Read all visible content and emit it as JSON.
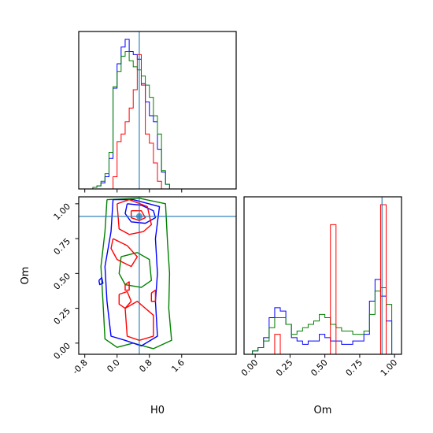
{
  "chart_data": {
    "type": "corner",
    "params": [
      "H0",
      "Om"
    ],
    "truth": {
      "H0": 0.55,
      "Om": 0.91
    },
    "colors": {
      "series": [
        "#0000ff",
        "#008000",
        "#ff0000"
      ],
      "truth": "#1f77b4"
    },
    "axes": {
      "H0": {
        "label": "H0",
        "range": [
          -0.95,
          2.95
        ],
        "ticks": [
          "-0.8",
          "0.0",
          "0.8",
          "1.6"
        ],
        "tick_values": [
          -0.8,
          0.0,
          0.8,
          1.6
        ]
      },
      "Om": {
        "label": "Om",
        "range": [
          -0.08,
          1.05
        ],
        "ticks": [
          "0.00",
          "0.25",
          "0.50",
          "0.75",
          "1.00"
        ],
        "tick_values": [
          0.0,
          0.25,
          0.5,
          0.75,
          1.0
        ]
      }
    },
    "hist_H0": {
      "bins": [
        -0.9,
        -0.8,
        -0.7,
        -0.6,
        -0.5,
        -0.4,
        -0.3,
        -0.2,
        -0.1,
        0.0,
        0.1,
        0.2,
        0.3,
        0.4,
        0.5,
        0.6,
        0.7,
        0.8,
        0.9,
        1.0,
        1.1,
        1.2,
        1.3,
        1.4,
        1.5
      ],
      "series": [
        {
          "values": [
            0,
            0,
            0,
            1,
            2,
            4,
            8,
            20,
            66,
            82,
            93,
            98,
            90,
            88,
            85,
            69,
            57,
            48,
            44,
            26,
            11,
            3,
            0,
            0
          ]
        },
        {
          "values": [
            0,
            0,
            0,
            1,
            2,
            5,
            10,
            24,
            67,
            77,
            87,
            90,
            84,
            80,
            78,
            74,
            68,
            60,
            48,
            36,
            12,
            3,
            0,
            0
          ]
        },
        {
          "values": [
            0,
            0,
            0,
            0,
            0,
            0,
            0,
            0,
            8,
            31,
            36,
            44,
            53,
            65,
            88,
            68,
            36,
            30,
            17,
            5,
            0,
            0,
            0,
            0
          ]
        }
      ]
    },
    "hist_Om": {
      "bins": [
        -0.06,
        -0.02,
        0.02,
        0.06,
        0.1,
        0.14,
        0.18,
        0.22,
        0.26,
        0.3,
        0.34,
        0.38,
        0.42,
        0.46,
        0.5,
        0.54,
        0.58,
        0.62,
        0.66,
        0.7,
        0.74,
        0.78,
        0.82,
        0.86,
        0.9,
        0.94,
        0.98,
        1.02,
        1.06
      ],
      "series": [
        {
          "values": [
            0,
            2,
            4,
            10,
            22,
            28,
            26,
            18,
            10,
            8,
            6,
            8,
            8,
            12,
            10,
            8,
            8,
            6,
            6,
            8,
            8,
            12,
            32,
            45,
            35,
            20,
            0,
            0
          ]
        },
        {
          "values": [
            0,
            2,
            4,
            8,
            16,
            22,
            22,
            18,
            12,
            14,
            16,
            18,
            20,
            24,
            22,
            18,
            16,
            14,
            14,
            12,
            12,
            14,
            24,
            38,
            40,
            30,
            0,
            0
          ]
        },
        {
          "values": [
            0,
            0,
            0,
            0,
            0,
            12,
            0,
            0,
            0,
            0,
            0,
            0,
            0,
            0,
            0,
            78,
            0,
            0,
            0,
            0,
            0,
            0,
            0,
            0,
            90,
            0,
            0,
            0
          ]
        }
      ]
    },
    "contours": [
      {
        "series": 1,
        "level": "outer",
        "points": [
          [
            -0.25,
            1.03
          ],
          [
            0.55,
            1.04
          ],
          [
            1.2,
            1.0
          ],
          [
            1.25,
            0.72
          ],
          [
            1.3,
            0.5
          ],
          [
            1.28,
            0.25
          ],
          [
            1.35,
            0.02
          ],
          [
            0.9,
            -0.04
          ],
          [
            0.4,
            0.0
          ],
          [
            0.0,
            -0.03
          ],
          [
            -0.3,
            0.03
          ],
          [
            -0.35,
            0.3
          ],
          [
            -0.4,
            0.55
          ],
          [
            -0.3,
            0.8
          ],
          [
            -0.25,
            1.03
          ]
        ]
      },
      {
        "series": 0,
        "level": "outer",
        "points": [
          [
            -0.1,
            1.03
          ],
          [
            0.4,
            1.03
          ],
          [
            1.05,
            0.98
          ],
          [
            0.95,
            0.75
          ],
          [
            1.0,
            0.5
          ],
          [
            0.95,
            0.3
          ],
          [
            1.0,
            0.05
          ],
          [
            0.6,
            -0.02
          ],
          [
            0.2,
            0.02
          ],
          [
            -0.15,
            0.05
          ],
          [
            -0.25,
            0.3
          ],
          [
            -0.3,
            0.55
          ],
          [
            -0.15,
            0.8
          ],
          [
            -0.1,
            1.03
          ]
        ]
      },
      {
        "series": 0,
        "level": "inner",
        "points": [
          [
            0.25,
            1.0
          ],
          [
            0.6,
            0.99
          ],
          [
            0.9,
            0.95
          ],
          [
            0.95,
            0.9
          ],
          [
            0.7,
            0.86
          ],
          [
            0.35,
            0.87
          ],
          [
            0.2,
            0.93
          ],
          [
            0.25,
            1.0
          ]
        ]
      },
      {
        "series": 1,
        "level": "inner",
        "points": [
          [
            0.1,
            0.62
          ],
          [
            0.5,
            0.65
          ],
          [
            0.8,
            0.6
          ],
          [
            0.85,
            0.45
          ],
          [
            0.6,
            0.4
          ],
          [
            0.2,
            0.42
          ],
          [
            0.05,
            0.5
          ],
          [
            0.1,
            0.62
          ]
        ]
      },
      {
        "series": 2,
        "level": "outer",
        "points": [
          [
            0.0,
            1.0
          ],
          [
            0.3,
            1.03
          ],
          [
            0.75,
            0.98
          ],
          [
            0.85,
            0.85
          ],
          [
            0.65,
            0.8
          ],
          [
            0.3,
            0.78
          ],
          [
            0.05,
            0.82
          ],
          [
            0.0,
            1.0
          ]
        ]
      },
      {
        "series": 2,
        "level": "outer",
        "points": [
          [
            -0.1,
            0.75
          ],
          [
            0.25,
            0.7
          ],
          [
            0.5,
            0.62
          ],
          [
            0.35,
            0.55
          ],
          [
            0.0,
            0.6
          ],
          [
            -0.15,
            0.68
          ],
          [
            -0.1,
            0.75
          ]
        ]
      },
      {
        "series": 2,
        "level": "outer",
        "points": [
          [
            0.2,
            0.25
          ],
          [
            0.5,
            0.3
          ],
          [
            0.9,
            0.2
          ],
          [
            0.9,
            0.05
          ],
          [
            0.55,
            0.02
          ],
          [
            0.25,
            0.05
          ],
          [
            0.2,
            0.25
          ]
        ]
      },
      {
        "series": 2,
        "level": "outer",
        "points": [
          [
            0.05,
            0.35
          ],
          [
            0.25,
            0.37
          ],
          [
            0.35,
            0.3
          ],
          [
            0.2,
            0.25
          ],
          [
            0.05,
            0.28
          ],
          [
            0.05,
            0.35
          ]
        ]
      },
      {
        "series": 2,
        "level": "inner",
        "points": [
          [
            0.35,
            0.95
          ],
          [
            0.6,
            0.95
          ],
          [
            0.7,
            0.9
          ],
          [
            0.55,
            0.88
          ],
          [
            0.35,
            0.9
          ],
          [
            0.35,
            0.95
          ]
        ]
      },
      {
        "series": 2,
        "level": "inner",
        "points": [
          [
            0.2,
            0.42
          ],
          [
            0.3,
            0.44
          ],
          [
            0.3,
            0.38
          ],
          [
            0.2,
            0.38
          ],
          [
            0.2,
            0.42
          ]
        ]
      },
      {
        "series": 2,
        "level": "inner",
        "points": [
          [
            0.85,
            0.36
          ],
          [
            0.95,
            0.38
          ],
          [
            0.95,
            0.3
          ],
          [
            0.85,
            0.3
          ],
          [
            0.85,
            0.36
          ]
        ]
      },
      {
        "series": 0,
        "level": "inner",
        "points": [
          [
            -0.45,
            0.45
          ],
          [
            -0.38,
            0.47
          ],
          [
            -0.35,
            0.43
          ],
          [
            -0.43,
            0.42
          ],
          [
            -0.45,
            0.45
          ]
        ]
      }
    ]
  }
}
